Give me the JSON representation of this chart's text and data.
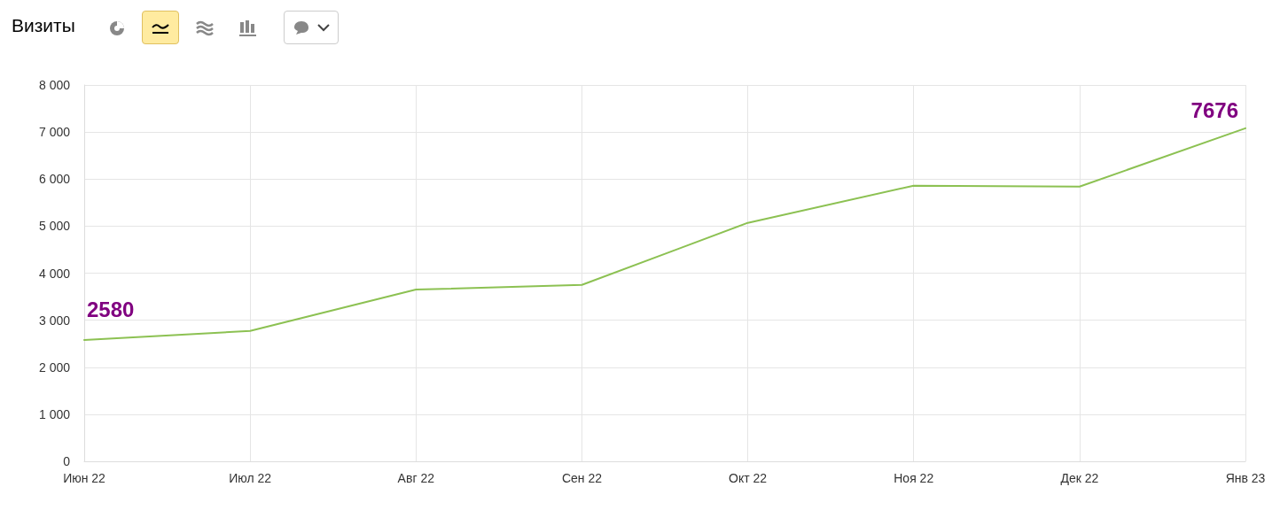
{
  "chart_data": {
    "type": "line",
    "title": "Визиты",
    "categories": [
      "Июн 22",
      "Июл 22",
      "Авг 22",
      "Сен 22",
      "Окт 22",
      "Ноя 22",
      "Дек 22",
      "Янв 23"
    ],
    "series": [
      {
        "color": "#8cc152",
        "values": [
          2580,
          2770,
          3650,
          3750,
          5070,
          5860,
          5840,
          7080
        ]
      }
    ],
    "ylim": [
      0,
      8000
    ],
    "yticks": [
      0,
      {
        "value": 1000,
        "label": "1 000"
      },
      {
        "value": 2000,
        "label": "2 000"
      },
      {
        "value": 3000,
        "label": "3 000"
      },
      {
        "value": 4000,
        "label": "4 000"
      },
      {
        "value": 5000,
        "label": "5 000"
      },
      {
        "value": 6000,
        "label": "6 000"
      },
      {
        "value": 7000,
        "label": "7 000"
      },
      {
        "value": 8000,
        "label": "8 000"
      }
    ],
    "annotations": [
      "2580",
      "7676"
    ],
    "grid": true,
    "marker": "none",
    "line_style": "solid"
  }
}
